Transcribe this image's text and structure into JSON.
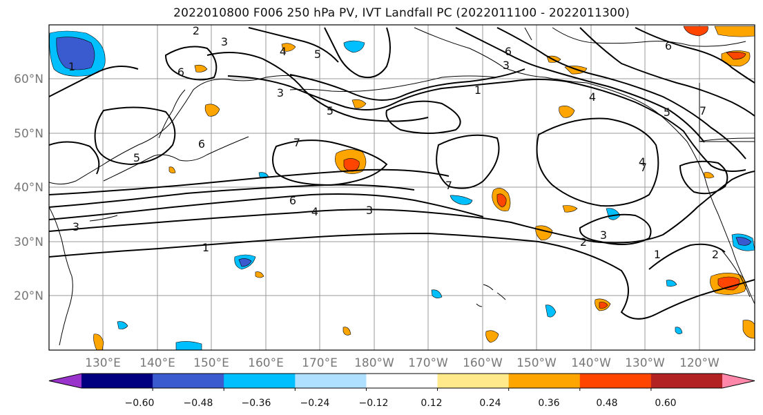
{
  "title": "2022010800 F006 250 hPa PV, IVT Landfall PC (2022011100 - 2022011300)",
  "lat_labels": [
    "60°N",
    "50°N",
    "40°N",
    "30°N",
    "20°N"
  ],
  "lon_labels": [
    "130°E",
    "140°E",
    "150°E",
    "160°E",
    "170°E",
    "180°W",
    "170°W",
    "160°W",
    "150°W",
    "140°W",
    "130°W",
    "120°W"
  ],
  "colorbar": {
    "ticks": [
      "−0.60",
      "−0.48",
      "−0.36",
      "−0.24",
      "−0.12",
      "0.12",
      "0.24",
      "0.36",
      "0.48",
      "0.60"
    ],
    "colors": [
      "#9933cc",
      "#000080",
      "#3a5bcf",
      "#00bfff",
      "#b0e0ff",
      "#ffffff",
      "#ffe98a",
      "#ffa500",
      "#ff4500",
      "#b22222",
      "#ff88aa"
    ]
  },
  "contour_labels": [
    "2",
    "3",
    "4",
    "5",
    "6",
    "1",
    "3",
    "6",
    "5",
    "7",
    "5",
    "4",
    "6",
    "6",
    "3",
    "1",
    "5",
    "4",
    "3",
    "7",
    "7",
    "6",
    "4",
    "3",
    "1",
    "7",
    "2",
    "3",
    "1",
    "2"
  ],
  "colors": {
    "positive_shading": "#ffa500",
    "positive_strong": "#ff4500",
    "negative_shading": "#00bfff",
    "negative_strong": "#3a5bcf"
  }
}
